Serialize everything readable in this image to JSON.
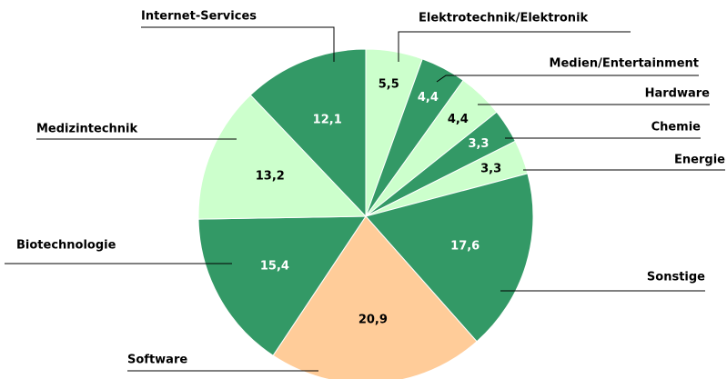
{
  "chart_data": {
    "type": "pie",
    "categories": [
      "Elektrotechnik/Elektronik",
      "Medien/Entertainment",
      "Hardware",
      "Chemie",
      "Energie",
      "Sonstige",
      "Software",
      "Biotechnologie",
      "Medizintechnik",
      "Internet-Services"
    ],
    "values": [
      5.5,
      4.4,
      4.4,
      3.3,
      3.3,
      17.6,
      20.9,
      15.4,
      13.2,
      12.1
    ],
    "value_labels": [
      "5,5",
      "4,4",
      "4,4",
      "3,3",
      "3,3",
      "17,6",
      "20,9",
      "15,4",
      "13,2",
      "12,1"
    ],
    "colors": [
      "#ccffcc",
      "#339966",
      "#ccffcc",
      "#339966",
      "#ccffcc",
      "#339966",
      "#ffcc99",
      "#339966",
      "#ccffcc",
      "#339966"
    ]
  }
}
